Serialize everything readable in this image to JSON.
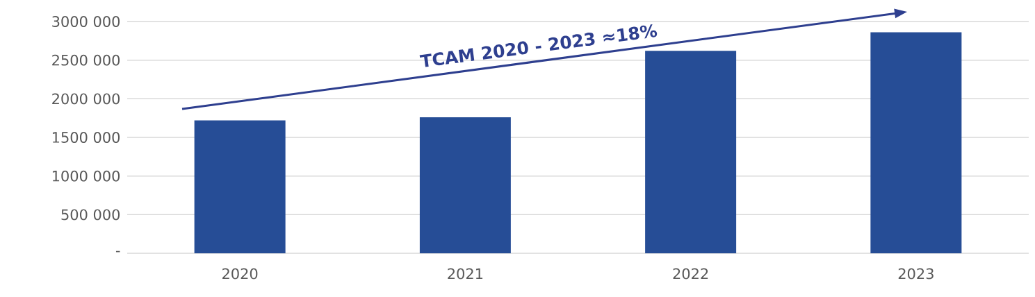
{
  "chart_data": {
    "type": "bar",
    "categories": [
      "2020",
      "2021",
      "2022",
      "2023"
    ],
    "values": [
      1720000,
      1760000,
      2620000,
      2860000
    ],
    "color": "#264d96",
    "ylim": [
      0,
      3000000
    ],
    "yticks": [
      {
        "value": 0,
        "label": "-"
      },
      {
        "value": 500000,
        "label": "500 000"
      },
      {
        "value": 1000000,
        "label": "1000 000"
      },
      {
        "value": 1500000,
        "label": "1500 000"
      },
      {
        "value": 2000000,
        "label": "2000 000"
      },
      {
        "value": 2500000,
        "label": "2500 000"
      },
      {
        "value": 3000000,
        "label": "3000 000"
      }
    ],
    "grid": "y",
    "annotations": [
      "TCAM 2020 - 2023 ≈18%"
    ]
  }
}
